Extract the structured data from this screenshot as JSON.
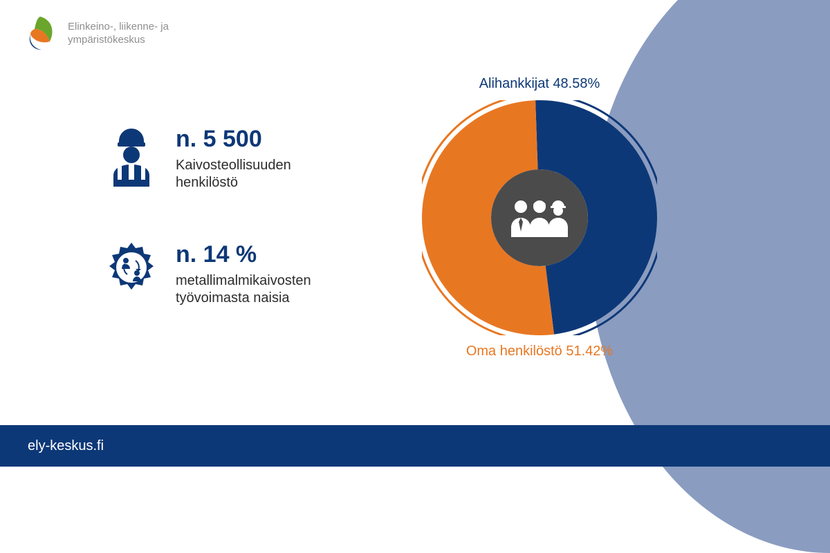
{
  "logo": {
    "line1": "Elinkeino-, liikenne- ja",
    "line2": "ympäristökeskus",
    "leaf_colors": {
      "outer_green": "#6aa52c",
      "inner_orange": "#e87722",
      "swirl_navy": "#0d3877"
    }
  },
  "stats": [
    {
      "value": "n. 5 500",
      "label": "Kaivosteollisuuden henkilöstö",
      "icon": "worker",
      "value_color": "#0d3877",
      "label_color": "#2d2d2d"
    },
    {
      "value": "n. 14 %",
      "label": "metallimalmikaivosten työvoimasta naisia",
      "icon": "gear-people",
      "value_color": "#0d3877",
      "label_color": "#2d2d2d"
    }
  ],
  "donut": {
    "type": "pie",
    "slices": [
      {
        "label": "Alihankkijat",
        "value": 48.58,
        "color": "#0d3877",
        "label_color": "#0d3877"
      },
      {
        "label": "Oma henkilöstö",
        "value": 51.42,
        "color": "#e87722",
        "label_color": "#e87722"
      }
    ],
    "outer_radius": 170,
    "inner_radius": 70,
    "center_bg": "#4b4b4b",
    "center_icon": "people-trio",
    "arc_stroke_width": 3,
    "rotation_start_deg": -2,
    "caption_top": "Alihankkijat 48.58%",
    "caption_bottom": "Oma henkilöstö 51.42%",
    "caption_fontsize": 20
  },
  "footer": {
    "text": "ely-keskus.fi",
    "bg": "#0d3877",
    "text_color": "#ffffff"
  },
  "background": {
    "page_bg": "#ffffff",
    "curve_color": "#8a9cc0"
  }
}
